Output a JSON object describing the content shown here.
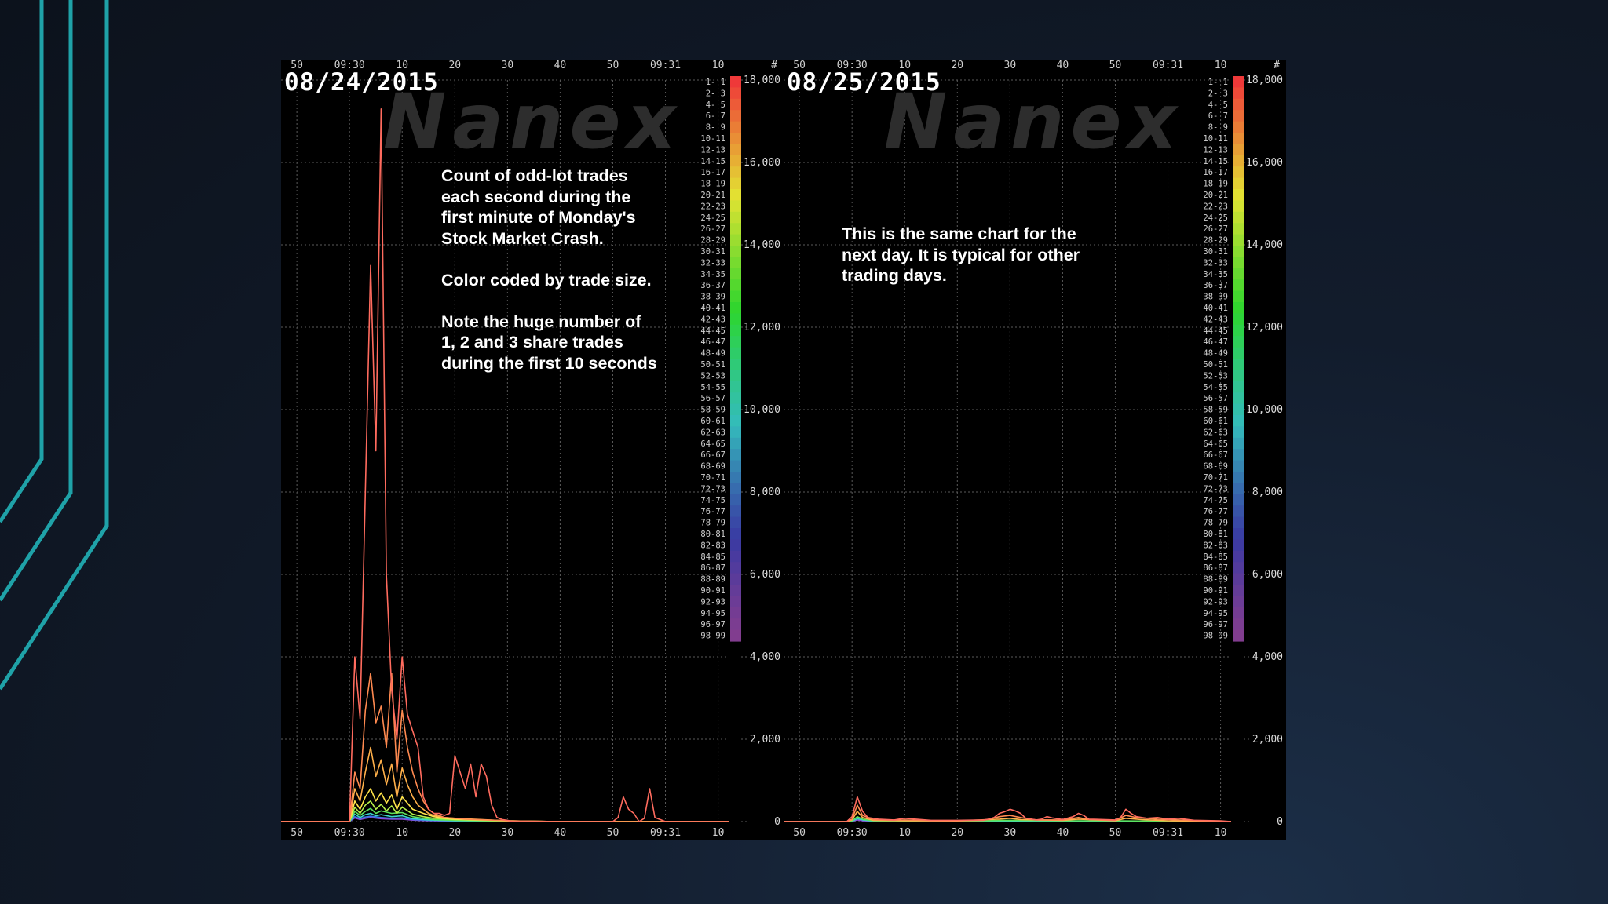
{
  "slide": {
    "accent_color": "#1fa2a8",
    "background_color": "#121c2c"
  },
  "left_panel": {
    "date": "08/24/2015",
    "watermark": "Nanex",
    "note_paragraphs": [
      "Count of odd-lot trades\neach second during the\nfirst minute of Monday's\nStock Market Crash.",
      "Color coded by trade size.",
      "Note the huge number of\n1, 2 and 3 share trades\nduring the first 10 seconds"
    ]
  },
  "right_panel": {
    "date": "08/25/2015",
    "watermark": "Nanex",
    "note_paragraphs": [
      "This is the same chart for the\nnext day. It is typical for other\ntrading days."
    ]
  },
  "chart_data": [
    {
      "type": "line",
      "date": "08/24/2015",
      "x_tick_labels": [
        "50",
        "09:30",
        "10",
        "20",
        "30",
        "40",
        "50",
        "09:31",
        "10"
      ],
      "x_tick_seconds": [
        -10,
        0,
        10,
        20,
        30,
        40,
        50,
        60,
        70
      ],
      "xlim": [
        -13,
        72
      ],
      "y_tick_labels": [
        "0",
        "2,000",
        "4,000",
        "6,000",
        "8,000",
        "10,000",
        "12,000",
        "14,000",
        "16,000",
        "18,000"
      ],
      "ylim": [
        0,
        18000
      ],
      "legend_header": "#",
      "legend_ranges": [
        "1- 1",
        "2- 3",
        "4- 5",
        "6- 7",
        "8- 9",
        "10-11",
        "12-13",
        "14-15",
        "16-17",
        "18-19",
        "20-21",
        "22-23",
        "24-25",
        "26-27",
        "28-29",
        "30-31",
        "32-33",
        "34-35",
        "36-37",
        "38-39",
        "40-41",
        "42-43",
        "44-45",
        "46-47",
        "48-49",
        "50-51",
        "52-53",
        "54-55",
        "56-57",
        "58-59",
        "60-61",
        "62-63",
        "64-65",
        "66-67",
        "68-69",
        "70-71",
        "72-73",
        "74-75",
        "76-77",
        "78-79",
        "80-81",
        "82-83",
        "84-85",
        "86-87",
        "88-89",
        "90-91",
        "92-93",
        "94-95",
        "96-97",
        "98-99"
      ],
      "grid": true,
      "series": [
        {
          "color": "#ff6b5e",
          "x": [
            -13,
            -1,
            0,
            1,
            2,
            3,
            4,
            5,
            6,
            7,
            8,
            9,
            10,
            11,
            12,
            13,
            14,
            15,
            16,
            17,
            18,
            19,
            20,
            21,
            22,
            23,
            24,
            25,
            26,
            27,
            28,
            29,
            30,
            31,
            35,
            40,
            45,
            50,
            51,
            52,
            53,
            54,
            55,
            56,
            57,
            58,
            60,
            65,
            70,
            72
          ],
          "y": [
            0,
            0,
            0,
            4000,
            2500,
            8000,
            13500,
            9000,
            17300,
            6000,
            3200,
            2000,
            4000,
            2600,
            2200,
            1800,
            600,
            300,
            200,
            200,
            150,
            200,
            1600,
            1200,
            800,
            1400,
            600,
            1400,
            1100,
            400,
            100,
            50,
            30,
            0,
            0,
            0,
            0,
            0,
            100,
            600,
            300,
            200,
            0,
            80,
            800,
            100,
            0,
            0,
            0,
            0
          ]
        },
        {
          "color": "#ff8a50",
          "x": [
            -13,
            -1,
            0,
            1,
            2,
            3,
            4,
            5,
            6,
            7,
            8,
            9,
            10,
            11,
            12,
            13,
            14,
            15,
            16,
            17,
            18,
            20,
            22,
            24,
            26,
            28,
            30,
            35,
            40,
            50,
            60,
            70,
            72
          ],
          "y": [
            0,
            0,
            0,
            1200,
            800,
            2700,
            3600,
            2400,
            2800,
            1800,
            3600,
            1200,
            2700,
            1800,
            1200,
            800,
            500,
            300,
            200,
            150,
            100,
            80,
            60,
            50,
            40,
            30,
            20,
            10,
            0,
            0,
            0,
            0,
            0
          ]
        },
        {
          "color": "#ffb04a",
          "x": [
            -13,
            -1,
            0,
            1,
            2,
            3,
            4,
            5,
            6,
            7,
            8,
            9,
            10,
            11,
            12,
            13,
            14,
            15,
            16,
            18,
            20,
            25,
            30,
            40,
            50,
            60,
            72
          ],
          "y": [
            0,
            0,
            0,
            800,
            500,
            1200,
            1800,
            1100,
            1500,
            900,
            1400,
            600,
            1300,
            900,
            600,
            400,
            300,
            200,
            150,
            100,
            80,
            50,
            20,
            0,
            0,
            0,
            0
          ]
        },
        {
          "color": "#ffe44a",
          "x": [
            -13,
            -1,
            0,
            1,
            2,
            3,
            4,
            5,
            6,
            7,
            8,
            9,
            10,
            12,
            14,
            16,
            18,
            20,
            25,
            30,
            40,
            50,
            60,
            72
          ],
          "y": [
            0,
            0,
            0,
            500,
            300,
            600,
            800,
            500,
            700,
            450,
            650,
            300,
            600,
            300,
            200,
            120,
            80,
            60,
            40,
            20,
            0,
            0,
            0,
            0
          ]
        },
        {
          "color": "#b6f04a",
          "x": [
            -13,
            -1,
            0,
            1,
            2,
            3,
            4,
            5,
            6,
            7,
            8,
            9,
            10,
            12,
            14,
            16,
            20,
            25,
            30,
            40,
            50,
            60,
            72
          ],
          "y": [
            0,
            0,
            0,
            350,
            200,
            400,
            500,
            300,
            420,
            260,
            380,
            200,
            350,
            180,
            120,
            80,
            50,
            30,
            15,
            0,
            0,
            0,
            0
          ]
        },
        {
          "color": "#5ee35a",
          "x": [
            -13,
            -1,
            0,
            1,
            2,
            3,
            4,
            5,
            6,
            8,
            10,
            12,
            14,
            16,
            20,
            25,
            30,
            40,
            50,
            60,
            72
          ],
          "y": [
            0,
            0,
            0,
            250,
            150,
            250,
            320,
            200,
            260,
            200,
            220,
            120,
            80,
            50,
            30,
            20,
            10,
            0,
            0,
            0,
            0
          ]
        },
        {
          "color": "#3ad6c8",
          "x": [
            -13,
            -1,
            0,
            1,
            2,
            3,
            4,
            5,
            6,
            8,
            10,
            12,
            15,
            20,
            30,
            40,
            50,
            60,
            72
          ],
          "y": [
            0,
            0,
            0,
            180,
            100,
            170,
            200,
            140,
            170,
            120,
            140,
            70,
            40,
            20,
            10,
            0,
            0,
            0,
            0
          ]
        },
        {
          "color": "#3a7ae8",
          "x": [
            -13,
            -1,
            0,
            1,
            2,
            3,
            4,
            6,
            8,
            10,
            12,
            15,
            20,
            30,
            40,
            60,
            72
          ],
          "y": [
            0,
            0,
            0,
            120,
            70,
            110,
            130,
            100,
            80,
            90,
            50,
            30,
            15,
            5,
            0,
            0,
            0
          ]
        },
        {
          "color": "#8a4ad8",
          "x": [
            -13,
            -1,
            0,
            1,
            2,
            3,
            4,
            6,
            8,
            10,
            12,
            15,
            20,
            30,
            40,
            60,
            72
          ],
          "y": [
            0,
            0,
            0,
            90,
            50,
            80,
            100,
            70,
            60,
            60,
            35,
            20,
            10,
            5,
            0,
            0,
            0
          ]
        }
      ]
    },
    {
      "type": "line",
      "date": "08/25/2015",
      "x_tick_labels": [
        "50",
        "09:30",
        "10",
        "20",
        "30",
        "40",
        "50",
        "09:31",
        "10"
      ],
      "x_tick_seconds": [
        -10,
        0,
        10,
        20,
        30,
        40,
        50,
        60,
        70
      ],
      "xlim": [
        -13,
        72
      ],
      "y_tick_labels": [
        "0",
        "2,000",
        "4,000",
        "6,000",
        "8,000",
        "10,000",
        "12,000",
        "14,000",
        "16,000",
        "18,000"
      ],
      "ylim": [
        0,
        18000
      ],
      "legend_header": "#",
      "legend_ranges": [
        "1- 1",
        "2- 3",
        "4- 5",
        "6- 7",
        "8- 9",
        "10-11",
        "12-13",
        "14-15",
        "16-17",
        "18-19",
        "20-21",
        "22-23",
        "24-25",
        "26-27",
        "28-29",
        "30-31",
        "32-33",
        "34-35",
        "36-37",
        "38-39",
        "40-41",
        "42-43",
        "44-45",
        "46-47",
        "48-49",
        "50-51",
        "52-53",
        "54-55",
        "56-57",
        "58-59",
        "60-61",
        "62-63",
        "64-65",
        "66-67",
        "68-69",
        "70-71",
        "72-73",
        "74-75",
        "76-77",
        "78-79",
        "80-81",
        "82-83",
        "84-85",
        "86-87",
        "88-89",
        "90-91",
        "92-93",
        "94-95",
        "96-97",
        "98-99"
      ],
      "grid": true,
      "series": [
        {
          "color": "#ff6b5e",
          "x": [
            -13,
            -1,
            0,
            1,
            2,
            3,
            5,
            8,
            10,
            15,
            20,
            25,
            26,
            27,
            28,
            29,
            30,
            31,
            32,
            33,
            35,
            36,
            37,
            38,
            40,
            42,
            43,
            44,
            45,
            50,
            51,
            52,
            53,
            54,
            56,
            58,
            60,
            62,
            65,
            70,
            72
          ],
          "y": [
            0,
            0,
            120,
            600,
            250,
            100,
            60,
            40,
            80,
            30,
            30,
            40,
            60,
            100,
            200,
            240,
            300,
            260,
            200,
            80,
            40,
            60,
            120,
            90,
            50,
            120,
            200,
            150,
            60,
            40,
            100,
            300,
            200,
            120,
            80,
            100,
            60,
            80,
            30,
            20,
            0
          ]
        },
        {
          "color": "#ff8a50",
          "x": [
            -13,
            -1,
            0,
            1,
            2,
            4,
            8,
            10,
            15,
            20,
            25,
            28,
            30,
            32,
            35,
            40,
            43,
            45,
            50,
            52,
            54,
            58,
            62,
            66,
            72
          ],
          "y": [
            0,
            0,
            60,
            400,
            150,
            50,
            30,
            40,
            20,
            20,
            30,
            120,
            150,
            100,
            40,
            40,
            100,
            50,
            30,
            150,
            100,
            60,
            40,
            20,
            0
          ]
        },
        {
          "color": "#ffb04a",
          "x": [
            -13,
            -1,
            0,
            1,
            2,
            4,
            10,
            20,
            28,
            30,
            32,
            40,
            43,
            50,
            52,
            55,
            60,
            72
          ],
          "y": [
            0,
            0,
            40,
            250,
            100,
            30,
            20,
            15,
            60,
            80,
            50,
            30,
            60,
            20,
            80,
            50,
            20,
            0
          ]
        },
        {
          "color": "#5ee35a",
          "x": [
            -13,
            -1,
            0,
            1,
            2,
            4,
            10,
            20,
            30,
            40,
            50,
            60,
            72
          ],
          "y": [
            0,
            0,
            20,
            120,
            60,
            20,
            10,
            10,
            30,
            20,
            20,
            10,
            0
          ]
        },
        {
          "color": "#3ad6c8",
          "x": [
            -13,
            -1,
            0,
            1,
            2,
            4,
            10,
            20,
            30,
            40,
            50,
            60,
            72
          ],
          "y": [
            0,
            0,
            10,
            70,
            40,
            10,
            5,
            5,
            15,
            10,
            10,
            5,
            0
          ]
        },
        {
          "color": "#8a4ad8",
          "x": [
            -13,
            -1,
            0,
            1,
            2,
            4,
            10,
            20,
            30,
            40,
            50,
            60,
            72
          ],
          "y": [
            0,
            0,
            5,
            40,
            20,
            5,
            3,
            3,
            8,
            5,
            5,
            3,
            0
          ]
        }
      ]
    }
  ]
}
